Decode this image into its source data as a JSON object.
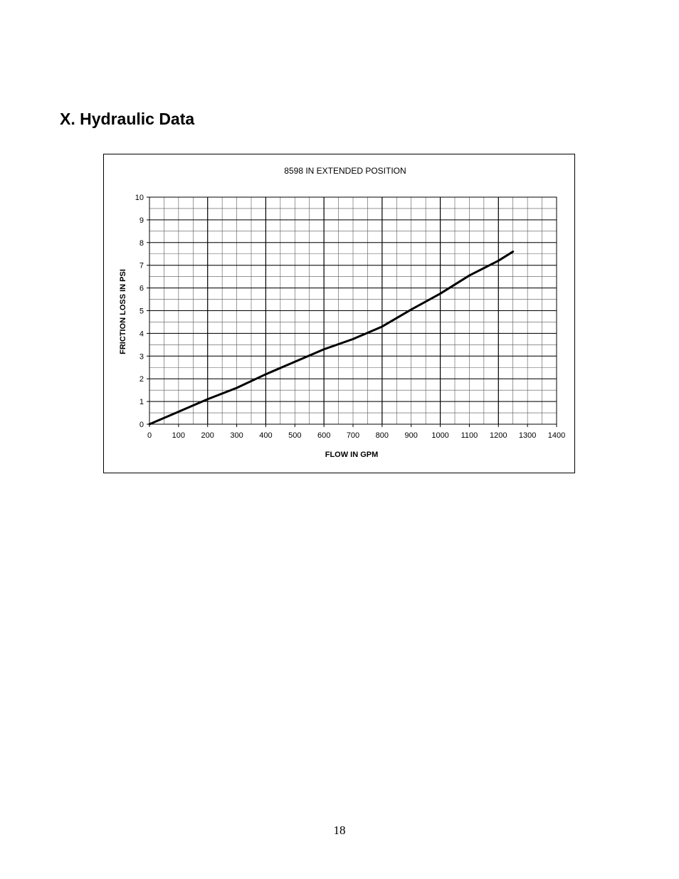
{
  "section": {
    "title": "X. Hydraulic Data"
  },
  "page": {
    "number": "18"
  },
  "chart_data": {
    "type": "line",
    "title": "8598 IN EXTENDED POSITION",
    "xlabel": "FLOW IN GPM",
    "ylabel": "FRICTION LOSS IN PSI",
    "xlim": [
      0,
      1400
    ],
    "ylim": [
      0,
      10
    ],
    "xticks": [
      0,
      100,
      200,
      300,
      400,
      500,
      600,
      700,
      800,
      900,
      1000,
      1100,
      1200,
      1300,
      1400
    ],
    "yticks": [
      0,
      1,
      2,
      3,
      4,
      5,
      6,
      7,
      8,
      9,
      10
    ],
    "grid": true,
    "legend": "none",
    "series": [
      {
        "color": "#000000",
        "x": [
          0,
          100,
          200,
          300,
          400,
          500,
          600,
          700,
          800,
          900,
          1000,
          1100,
          1200,
          1250
        ],
        "y": [
          0,
          0.55,
          1.1,
          1.6,
          2.2,
          2.75,
          3.3,
          3.75,
          4.3,
          5.05,
          5.75,
          6.55,
          7.2,
          7.6
        ]
      }
    ]
  }
}
